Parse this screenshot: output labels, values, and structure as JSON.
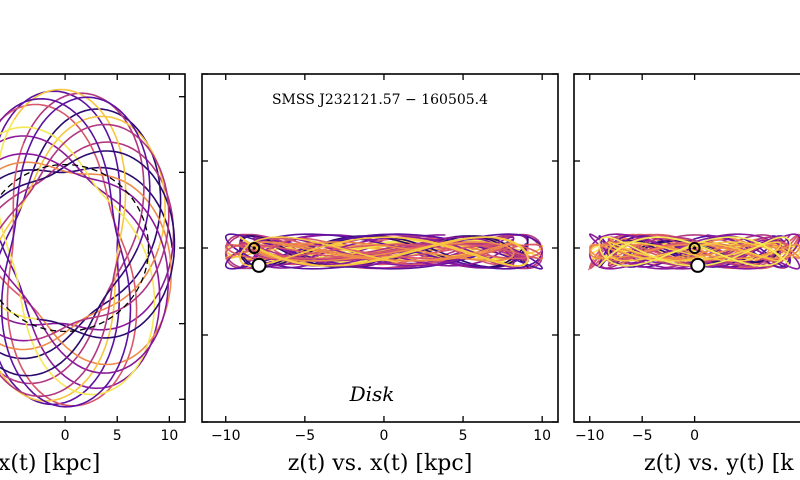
{
  "chart_data": [
    {
      "type": "line",
      "title": "",
      "xlabel": "x(t) [kpc]",
      "ylabel": "",
      "xlim": [
        -12,
        11.5
      ],
      "ylim": [
        -11.5,
        11.5
      ],
      "xticks": [
        0,
        5,
        10
      ],
      "yticks": [
        -10,
        -5,
        0,
        5,
        10
      ],
      "grid": false,
      "reference_circle_radius": 8,
      "orbit_radius_range": [
        5,
        10.5
      ],
      "colors": [
        "#2a0a6e",
        "#5b12a0",
        "#8a1a9b",
        "#b13780",
        "#d8576b",
        "#ee8b4a",
        "#f7c640",
        "#f5e855"
      ]
    },
    {
      "type": "line",
      "title": "",
      "xlabel": "z(t) vs. x(t) [kpc]",
      "ylabel": "",
      "annotation": "SMSS J232121.57 − 160505.4",
      "label": "Disk",
      "xlim": [
        -11.5,
        11
      ],
      "ylim": [
        -10,
        10
      ],
      "xticks": [
        -10,
        -5,
        0,
        5,
        10
      ],
      "xtick_labels": [
        "−10",
        "−5",
        "0",
        "5",
        "10"
      ],
      "yticks": [
        -10,
        -5,
        0,
        5,
        10
      ],
      "grid": false,
      "x_range": [
        -10,
        10
      ],
      "z_amplitude": 1.0,
      "sun_position": {
        "x": -8.2,
        "z": 0
      },
      "star_position": {
        "x": -7.9,
        "z": -1.0
      },
      "colors": [
        "#2a0a6e",
        "#5b12a0",
        "#8a1a9b",
        "#b13780",
        "#d8576b",
        "#ee8b4a",
        "#f7c640",
        "#f5e855"
      ]
    },
    {
      "type": "line",
      "title": "",
      "xlabel": "z(t) vs. y(t) [k",
      "ylabel": "",
      "xlim": [
        -11.5,
        11
      ],
      "ylim": [
        -10,
        10
      ],
      "xticks": [
        -10,
        -5,
        0
      ],
      "xtick_labels": [
        "−10",
        "−5",
        "0"
      ],
      "yticks": [
        -10,
        -5,
        0,
        5,
        10
      ],
      "grid": false,
      "y_range": [
        -10,
        10
      ],
      "z_amplitude": 1.0,
      "sun_position": {
        "x": 0,
        "z": 0
      },
      "star_position": {
        "x": 0.3,
        "z": -1.0
      },
      "colors": [
        "#2a0a6e",
        "#5b12a0",
        "#8a1a9b",
        "#b13780",
        "#d8576b",
        "#ee8b4a",
        "#f7c640",
        "#f5e855"
      ]
    }
  ]
}
